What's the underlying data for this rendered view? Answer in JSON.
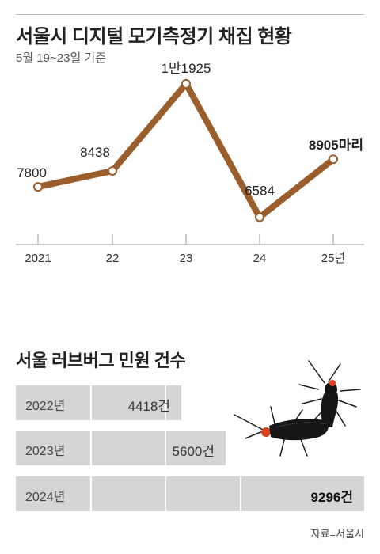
{
  "title": "서울시 디지털 모기측정기 채집 현황",
  "subtitle": "5월 19~23일 기준",
  "chart_data": [
    {
      "type": "line",
      "title": "서울시 디지털 모기측정기 채집 현황",
      "subtitle": "5월 19~23일 기준",
      "categories": [
        "2021",
        "22",
        "23",
        "24",
        "25년"
      ],
      "values": [
        7800,
        8438,
        11925,
        6584,
        8905
      ],
      "data_labels": [
        "7800",
        "8438",
        "1만1925",
        "6584",
        "8905마리"
      ],
      "ylim": [
        4000,
        13000
      ],
      "color": "#9a5d2c",
      "grid": false
    },
    {
      "type": "bar",
      "title": "서울 러브버그 민원 건수",
      "categories": [
        "2022년",
        "2023년",
        "2024년"
      ],
      "values": [
        4418,
        5600,
        9296
      ],
      "data_labels": [
        "4418건",
        "5600건",
        "9296건"
      ],
      "xlim": [
        0,
        9296
      ],
      "grid": false
    }
  ],
  "bar_chart": {
    "title": "서울 러브버그 민원 건수"
  },
  "source": "자료=서울시",
  "colors": {
    "line": "#9a5d2c",
    "bar_fill": "#d5d5d5",
    "bar_track": "#e7e7e7",
    "axis": "#999999"
  },
  "illustration": "lovebug-mating-pair-image"
}
